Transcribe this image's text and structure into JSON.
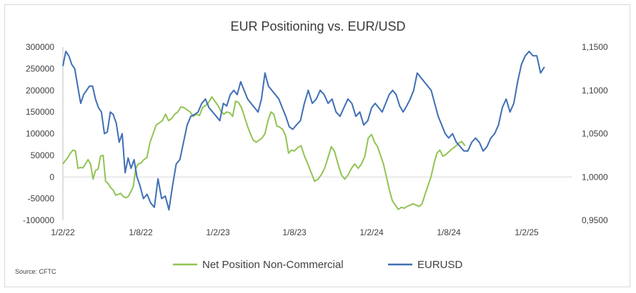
{
  "chart_data": {
    "type": "line",
    "title": "EUR Positioning vs. EUR/USD",
    "source": "Source: CFTC",
    "colors": {
      "net_position": "#92c353",
      "eurusd": "#3f6fb5"
    },
    "x_ticks": [
      "1/2/22",
      "1/8/22",
      "1/2/23",
      "1/8/23",
      "1/2/24",
      "1/8/24",
      "1/2/25"
    ],
    "x_tick_index": [
      0,
      31,
      56,
      82,
      105,
      131,
      155
    ],
    "y_left": {
      "min": -100000,
      "max": 300000,
      "ticks": [
        -100000,
        -50000,
        0,
        50000,
        100000,
        150000,
        200000,
        250000,
        300000
      ],
      "tick_labels": [
        "-100000",
        "-50000",
        "0",
        "50000",
        "100000",
        "150000",
        "200000",
        "250000",
        "300000"
      ]
    },
    "y_right": {
      "min": 0.95,
      "max": 1.15,
      "ticks": [
        0.95,
        1.0,
        1.05,
        1.1,
        1.15
      ],
      "tick_labels": [
        "0,9500",
        "1,0000",
        "1,0500",
        "1,1000",
        "1,1500"
      ]
    },
    "series": [
      {
        "name": "Net Position Non-Commercial",
        "axis": "left",
        "values": [
          30000,
          38000,
          45000,
          55000,
          62000,
          60000,
          20000,
          22000,
          21000,
          30000,
          40000,
          30000,
          -5000,
          15000,
          18000,
          48000,
          50000,
          -10000,
          -15000,
          -25000,
          -30000,
          -42000,
          -40000,
          -38000,
          -45000,
          -48000,
          -45000,
          -35000,
          -22000,
          20000,
          30000,
          32000,
          40000,
          45000,
          80000,
          100000,
          120000,
          125000,
          130000,
          145000,
          130000,
          135000,
          145000,
          150000,
          162000,
          160000,
          155000,
          150000,
          140000,
          145000,
          142000,
          160000,
          165000,
          172000,
          185000,
          175000,
          165000,
          152000,
          145000,
          150000,
          148000,
          140000,
          175000,
          172000,
          160000,
          140000,
          118000,
          100000,
          85000,
          80000,
          85000,
          90000,
          100000,
          130000,
          150000,
          145000,
          118000,
          115000,
          110000,
          95000,
          55000,
          62000,
          60000,
          68000,
          72000,
          48000,
          30000,
          10000,
          -10000,
          -5000,
          5000,
          20000,
          45000,
          70000,
          58000,
          30000,
          5000,
          -5000,
          5000,
          20000,
          30000,
          20000,
          30000,
          48000,
          90000,
          98000,
          80000,
          70000,
          50000,
          30000,
          0,
          -30000,
          -55000,
          -65000,
          -75000,
          -70000,
          -72000,
          -68000,
          -65000,
          -62000,
          -65000,
          -68000,
          -62000,
          -40000,
          -20000,
          0,
          30000,
          55000,
          62000,
          48000,
          52000,
          58000,
          65000,
          70000,
          78000,
          82000,
          72000
        ],
        "x_start": 0,
        "x_step": 1
      },
      {
        "name": "EURUSD",
        "axis": "right",
        "values": [
          1.128,
          1.145,
          1.14,
          1.13,
          1.125,
          1.105,
          1.085,
          1.095,
          1.1,
          1.105,
          1.105,
          1.09,
          1.08,
          1.075,
          1.05,
          1.052,
          1.075,
          1.072,
          1.062,
          1.04,
          1.05,
          1.005,
          1.022,
          1.01,
          1.02,
          1.0,
          0.99,
          0.975,
          0.98,
          0.97,
          0.965,
          0.998,
          0.975,
          0.978,
          0.962,
          0.99,
          1.015,
          1.02,
          1.04,
          1.06,
          1.07,
          1.072,
          1.075,
          1.085,
          1.09,
          1.08,
          1.075,
          1.07,
          1.065,
          1.085,
          1.082,
          1.095,
          1.1,
          1.095,
          1.11,
          1.1,
          1.09,
          1.085,
          1.08,
          1.075,
          1.09,
          1.12,
          1.105,
          1.1,
          1.095,
          1.09,
          1.08,
          1.07,
          1.058,
          1.055,
          1.06,
          1.065,
          1.085,
          1.1,
          1.085,
          1.09,
          1.1,
          1.095,
          1.085,
          1.09,
          1.075,
          1.07,
          1.08,
          1.09,
          1.085,
          1.07,
          1.075,
          1.06,
          1.065,
          1.08,
          1.085,
          1.08,
          1.075,
          1.085,
          1.095,
          1.1,
          1.095,
          1.082,
          1.075,
          1.082,
          1.09,
          1.1,
          1.12,
          1.115,
          1.11,
          1.105,
          1.1,
          1.085,
          1.07,
          1.06,
          1.05,
          1.045,
          1.05,
          1.04,
          1.035,
          1.03,
          1.03,
          1.04,
          1.045,
          1.04,
          1.03,
          1.035,
          1.045,
          1.05,
          1.06,
          1.08,
          1.09,
          1.075,
          1.085,
          1.11,
          1.13,
          1.14,
          1.145,
          1.14,
          1.14,
          1.12,
          1.127
        ],
        "x_start": 0,
        "x_step": 1.18
      }
    ],
    "legend": {
      "placement": "bottom",
      "entries": [
        "Net Position Non-Commercial",
        "EURUSD"
      ]
    },
    "grid": false
  }
}
